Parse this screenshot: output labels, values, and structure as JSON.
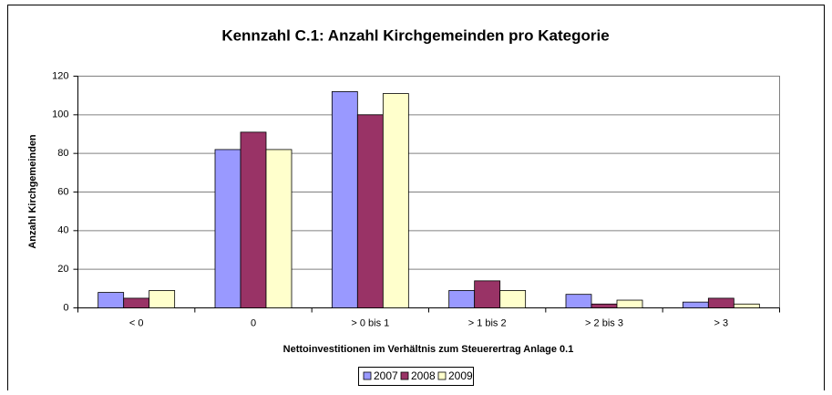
{
  "chart_data": {
    "type": "bar",
    "title": "Kennzahl C.1: Anzahl Kirchgemeinden pro Kategorie",
    "y_label": "Anzahl Kirchgemeinden",
    "x_label": "Nettoinvestitionen im Verhältnis zum Steuerertrag Anlage 0.1",
    "categories": [
      "< 0",
      "0",
      "> 0 bis 1",
      "> 1 bis 2",
      "> 2 bis 3",
      "> 3"
    ],
    "series": [
      {
        "name": "2007",
        "color": "#9999ff",
        "values": [
          8,
          82,
          112,
          9,
          7,
          3
        ]
      },
      {
        "name": "2008",
        "color": "#993366",
        "values": [
          5,
          91,
          100,
          14,
          2,
          5
        ]
      },
      {
        "name": "2009",
        "color": "#ffffcc",
        "values": [
          9,
          82,
          111,
          9,
          4,
          2
        ]
      }
    ],
    "ylim": [
      0,
      120
    ],
    "yticks": [
      0,
      20,
      40,
      60,
      80,
      100,
      120
    ],
    "grid": true,
    "legend": "bottom"
  }
}
